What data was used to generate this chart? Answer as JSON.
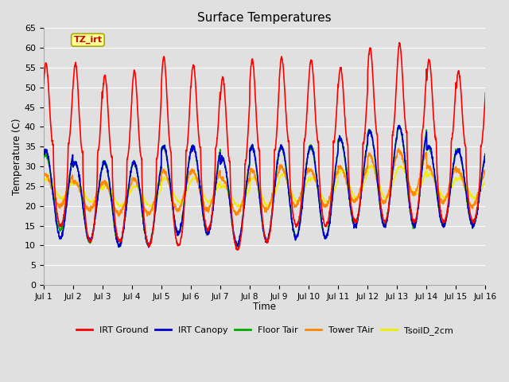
{
  "title": "Surface Temperatures",
  "xlabel": "Time",
  "ylabel": "Temperature (C)",
  "ylim": [
    0,
    65
  ],
  "yticks": [
    0,
    5,
    10,
    15,
    20,
    25,
    30,
    35,
    40,
    45,
    50,
    55,
    60,
    65
  ],
  "x_tick_labels": [
    "Jul 1",
    "Jul 2",
    "Jul 3",
    "Jul 4",
    "Jul 5",
    "Jul 6",
    "Jul 7",
    "Jul 8",
    "Jul 9",
    "Jul 10",
    "Jul 11",
    "Jul 12",
    "Jul 13",
    "Jul 14",
    "Jul 15",
    "Jul 16"
  ],
  "background_color": "#e0e0e0",
  "plot_bg_color": "#e0e0e0",
  "grid_color": "#ffffff",
  "annotation_text": "TZ_irt",
  "annotation_bg": "#ffff99",
  "annotation_border": "#aaaa00",
  "annotation_text_color": "#cc0000",
  "legend_colors": [
    "#ff0000",
    "#0000cc",
    "#00aa00",
    "#ff8800",
    "#eeee00"
  ],
  "legend_labels": [
    "IRT Ground",
    "IRT Canopy",
    "Floor Tair",
    "Tower TAir",
    "TsoilD_2cm"
  ],
  "irt_ground_peaks": [
    56,
    56,
    53,
    54,
    57.5,
    55.5,
    52.5,
    57,
    57.5,
    57,
    55,
    60,
    61,
    57,
    54
  ],
  "irt_ground_nights": [
    15,
    11,
    11,
    10,
    10,
    14,
    9,
    11,
    15,
    15,
    16,
    16,
    16,
    16,
    16
  ],
  "canopy_peaks": [
    34,
    31,
    31,
    31,
    35,
    35,
    32,
    35,
    35,
    35,
    37,
    39,
    40,
    35,
    34
  ],
  "canopy_nights": [
    12,
    11,
    10,
    10,
    13,
    13,
    10,
    11,
    12,
    12,
    15,
    15,
    15,
    15,
    15
  ],
  "floor_peaks": [
    33,
    31,
    31,
    31,
    35,
    35,
    32,
    35,
    35,
    35,
    37,
    39,
    40,
    35,
    34
  ],
  "floor_nights": [
    14,
    11,
    10,
    10,
    13,
    13,
    10,
    11,
    12,
    12,
    15,
    15,
    15,
    15,
    15
  ],
  "tower_peaks": [
    28,
    26,
    26,
    27,
    29,
    29,
    27,
    29,
    30,
    29,
    30,
    33,
    34,
    30,
    29
  ],
  "tower_nights": [
    20,
    19,
    18,
    18,
    19,
    19,
    18,
    19,
    20,
    20,
    21,
    21,
    23,
    21,
    20
  ],
  "soil_peaks": [
    27,
    26,
    25,
    25,
    27,
    27,
    25,
    27,
    28,
    27,
    29,
    30,
    30,
    28,
    27
  ],
  "soil_nights": [
    22,
    21,
    20,
    20,
    21,
    21,
    20,
    20,
    21,
    21,
    22,
    22,
    23,
    22,
    22
  ]
}
